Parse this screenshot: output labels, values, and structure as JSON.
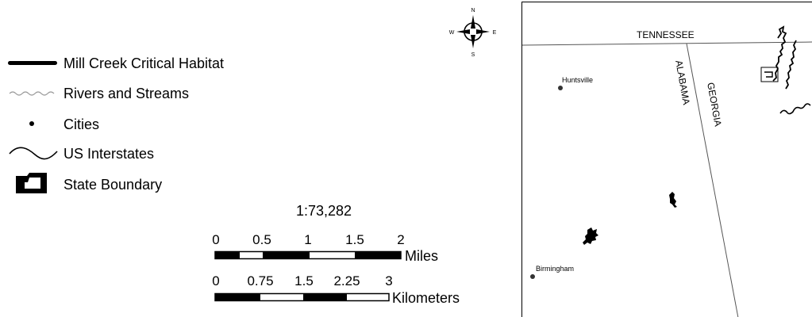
{
  "legend": {
    "items": [
      {
        "symbol": "thick-line",
        "label": "Mill Creek Critical Habitat"
      },
      {
        "symbol": "river-line",
        "label": "Rivers and Streams"
      },
      {
        "symbol": "dot",
        "label": "Cities"
      },
      {
        "symbol": "curve-line",
        "label": "US Interstates"
      },
      {
        "symbol": "boundary-polygon",
        "label": "State Boundary"
      }
    ]
  },
  "scale": {
    "ratio": "1:73,282",
    "miles_ticks": [
      "0",
      "0.5",
      "1",
      "1.5",
      "2"
    ],
    "miles_unit": "Miles",
    "km_ticks": [
      "0",
      "0.75",
      "1.5",
      "2.25",
      "3"
    ],
    "km_unit": "Kilometers"
  },
  "north_arrow": {
    "n": "N",
    "s": "S",
    "e": "E",
    "w": "W"
  },
  "map": {
    "state_labels": {
      "tennessee": "TENNESSEE",
      "alabama": "ALABAMA",
      "georgia": "GEORGIA"
    },
    "cities": [
      {
        "name": "Huntsville"
      },
      {
        "name": "Birmingham"
      }
    ]
  },
  "colors": {
    "ink": "#000000",
    "river": "#9a9a9a",
    "background": "#ffffff",
    "boundary": "#555555"
  }
}
